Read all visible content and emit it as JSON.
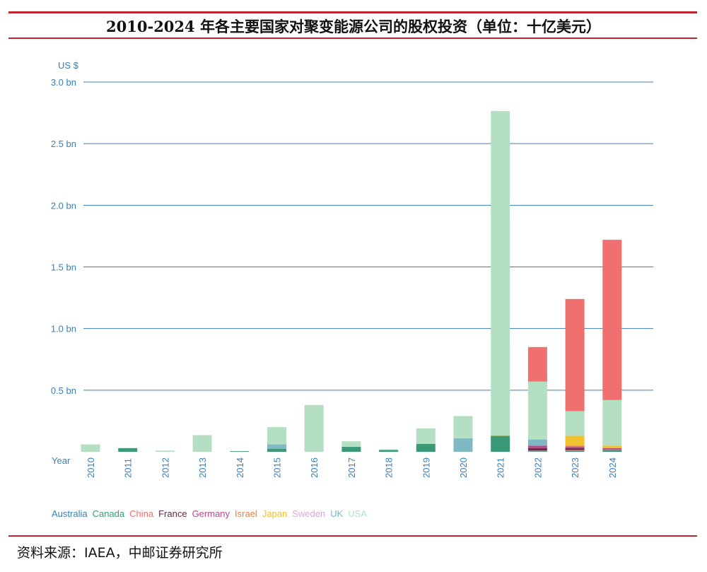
{
  "title": "2010-2024 年各主要国家对聚变能源公司的股权投资（单位：十亿美元）",
  "source": "资料来源：IAEA，中邮证券研究所",
  "chart_data": {
    "type": "bar",
    "stacked": true,
    "y_unit_label": "US $",
    "x_axis_label": "Year",
    "ylim": [
      0,
      3.0
    ],
    "y_ticks": [
      {
        "value": 0.5,
        "label": "0.5 bn"
      },
      {
        "value": 1.0,
        "label": "1.0 bn"
      },
      {
        "value": 1.5,
        "label": "1.5 bn"
      },
      {
        "value": 2.0,
        "label": "2.0 bn"
      },
      {
        "value": 2.5,
        "label": "2.5 bn"
      },
      {
        "value": 3.0,
        "label": "3.0 bn"
      }
    ],
    "grid": true,
    "legend_position": "bottom-left",
    "categories": [
      "2010",
      "2011",
      "2012",
      "2013",
      "2014",
      "2015",
      "2016",
      "2017",
      "2018",
      "2019",
      "2020",
      "2021",
      "2022",
      "2023",
      "2024"
    ],
    "series": [
      {
        "name": "Australia",
        "color": "#3a7fb8",
        "values": [
          0,
          0,
          0,
          0,
          0,
          0,
          0,
          0,
          0,
          0,
          0,
          0,
          0,
          0,
          0
        ]
      },
      {
        "name": "Canada",
        "color": "#3a9a78",
        "values": [
          0,
          0.03,
          0,
          0,
          0.005,
          0.025,
          0,
          0.04,
          0.015,
          0.065,
          0,
          0.13,
          0.005,
          0.01,
          0.015
        ]
      },
      {
        "name": "China",
        "color": "#f07070",
        "values": [
          0,
          0,
          0,
          0,
          0,
          0,
          0,
          0,
          0,
          0,
          0,
          0,
          0.005,
          0.005,
          0.005
        ]
      },
      {
        "name": "France",
        "color": "#6a2a48",
        "values": [
          0,
          0,
          0,
          0,
          0,
          0,
          0,
          0,
          0,
          0,
          0,
          0,
          0.02,
          0.015,
          0
        ]
      },
      {
        "name": "Germany",
        "color": "#b54a85",
        "values": [
          0,
          0,
          0,
          0,
          0,
          0,
          0,
          0,
          0,
          0,
          0,
          0,
          0.02,
          0.01,
          0.01
        ]
      },
      {
        "name": "Israel",
        "color": "#e0854a",
        "values": [
          0,
          0,
          0,
          0,
          0,
          0,
          0,
          0,
          0,
          0,
          0,
          0,
          0,
          0.01,
          0
        ]
      },
      {
        "name": "Japan",
        "color": "#f2c12e",
        "values": [
          0,
          0,
          0,
          0,
          0,
          0,
          0,
          0,
          0,
          0,
          0,
          0.005,
          0,
          0.08,
          0.02
        ]
      },
      {
        "name": "Sweden",
        "color": "#d9a8d9",
        "values": [
          0,
          0,
          0,
          0,
          0,
          0,
          0,
          0,
          0,
          0,
          0,
          0,
          0,
          0,
          0
        ]
      },
      {
        "name": "UK",
        "color": "#7fb9c4",
        "values": [
          0,
          0,
          0,
          0,
          0,
          0.035,
          0,
          0,
          0,
          0,
          0.11,
          0,
          0.05,
          0,
          0
        ]
      },
      {
        "name": "USA",
        "color": "#b4dfc3",
        "values": [
          0.06,
          0,
          0.01,
          0.135,
          0,
          0.14,
          0.38,
          0.045,
          0.005,
          0.125,
          0.18,
          2.63,
          0.47,
          0.2,
          0.37
        ]
      },
      {
        "name": "China",
        "color": "#f07070",
        "values": [
          0,
          0,
          0,
          0,
          0,
          0,
          0,
          0,
          0,
          0,
          0,
          0,
          0.28,
          0.91,
          1.3
        ],
        "legend": false
      }
    ],
    "stack_order_note": ""
  }
}
